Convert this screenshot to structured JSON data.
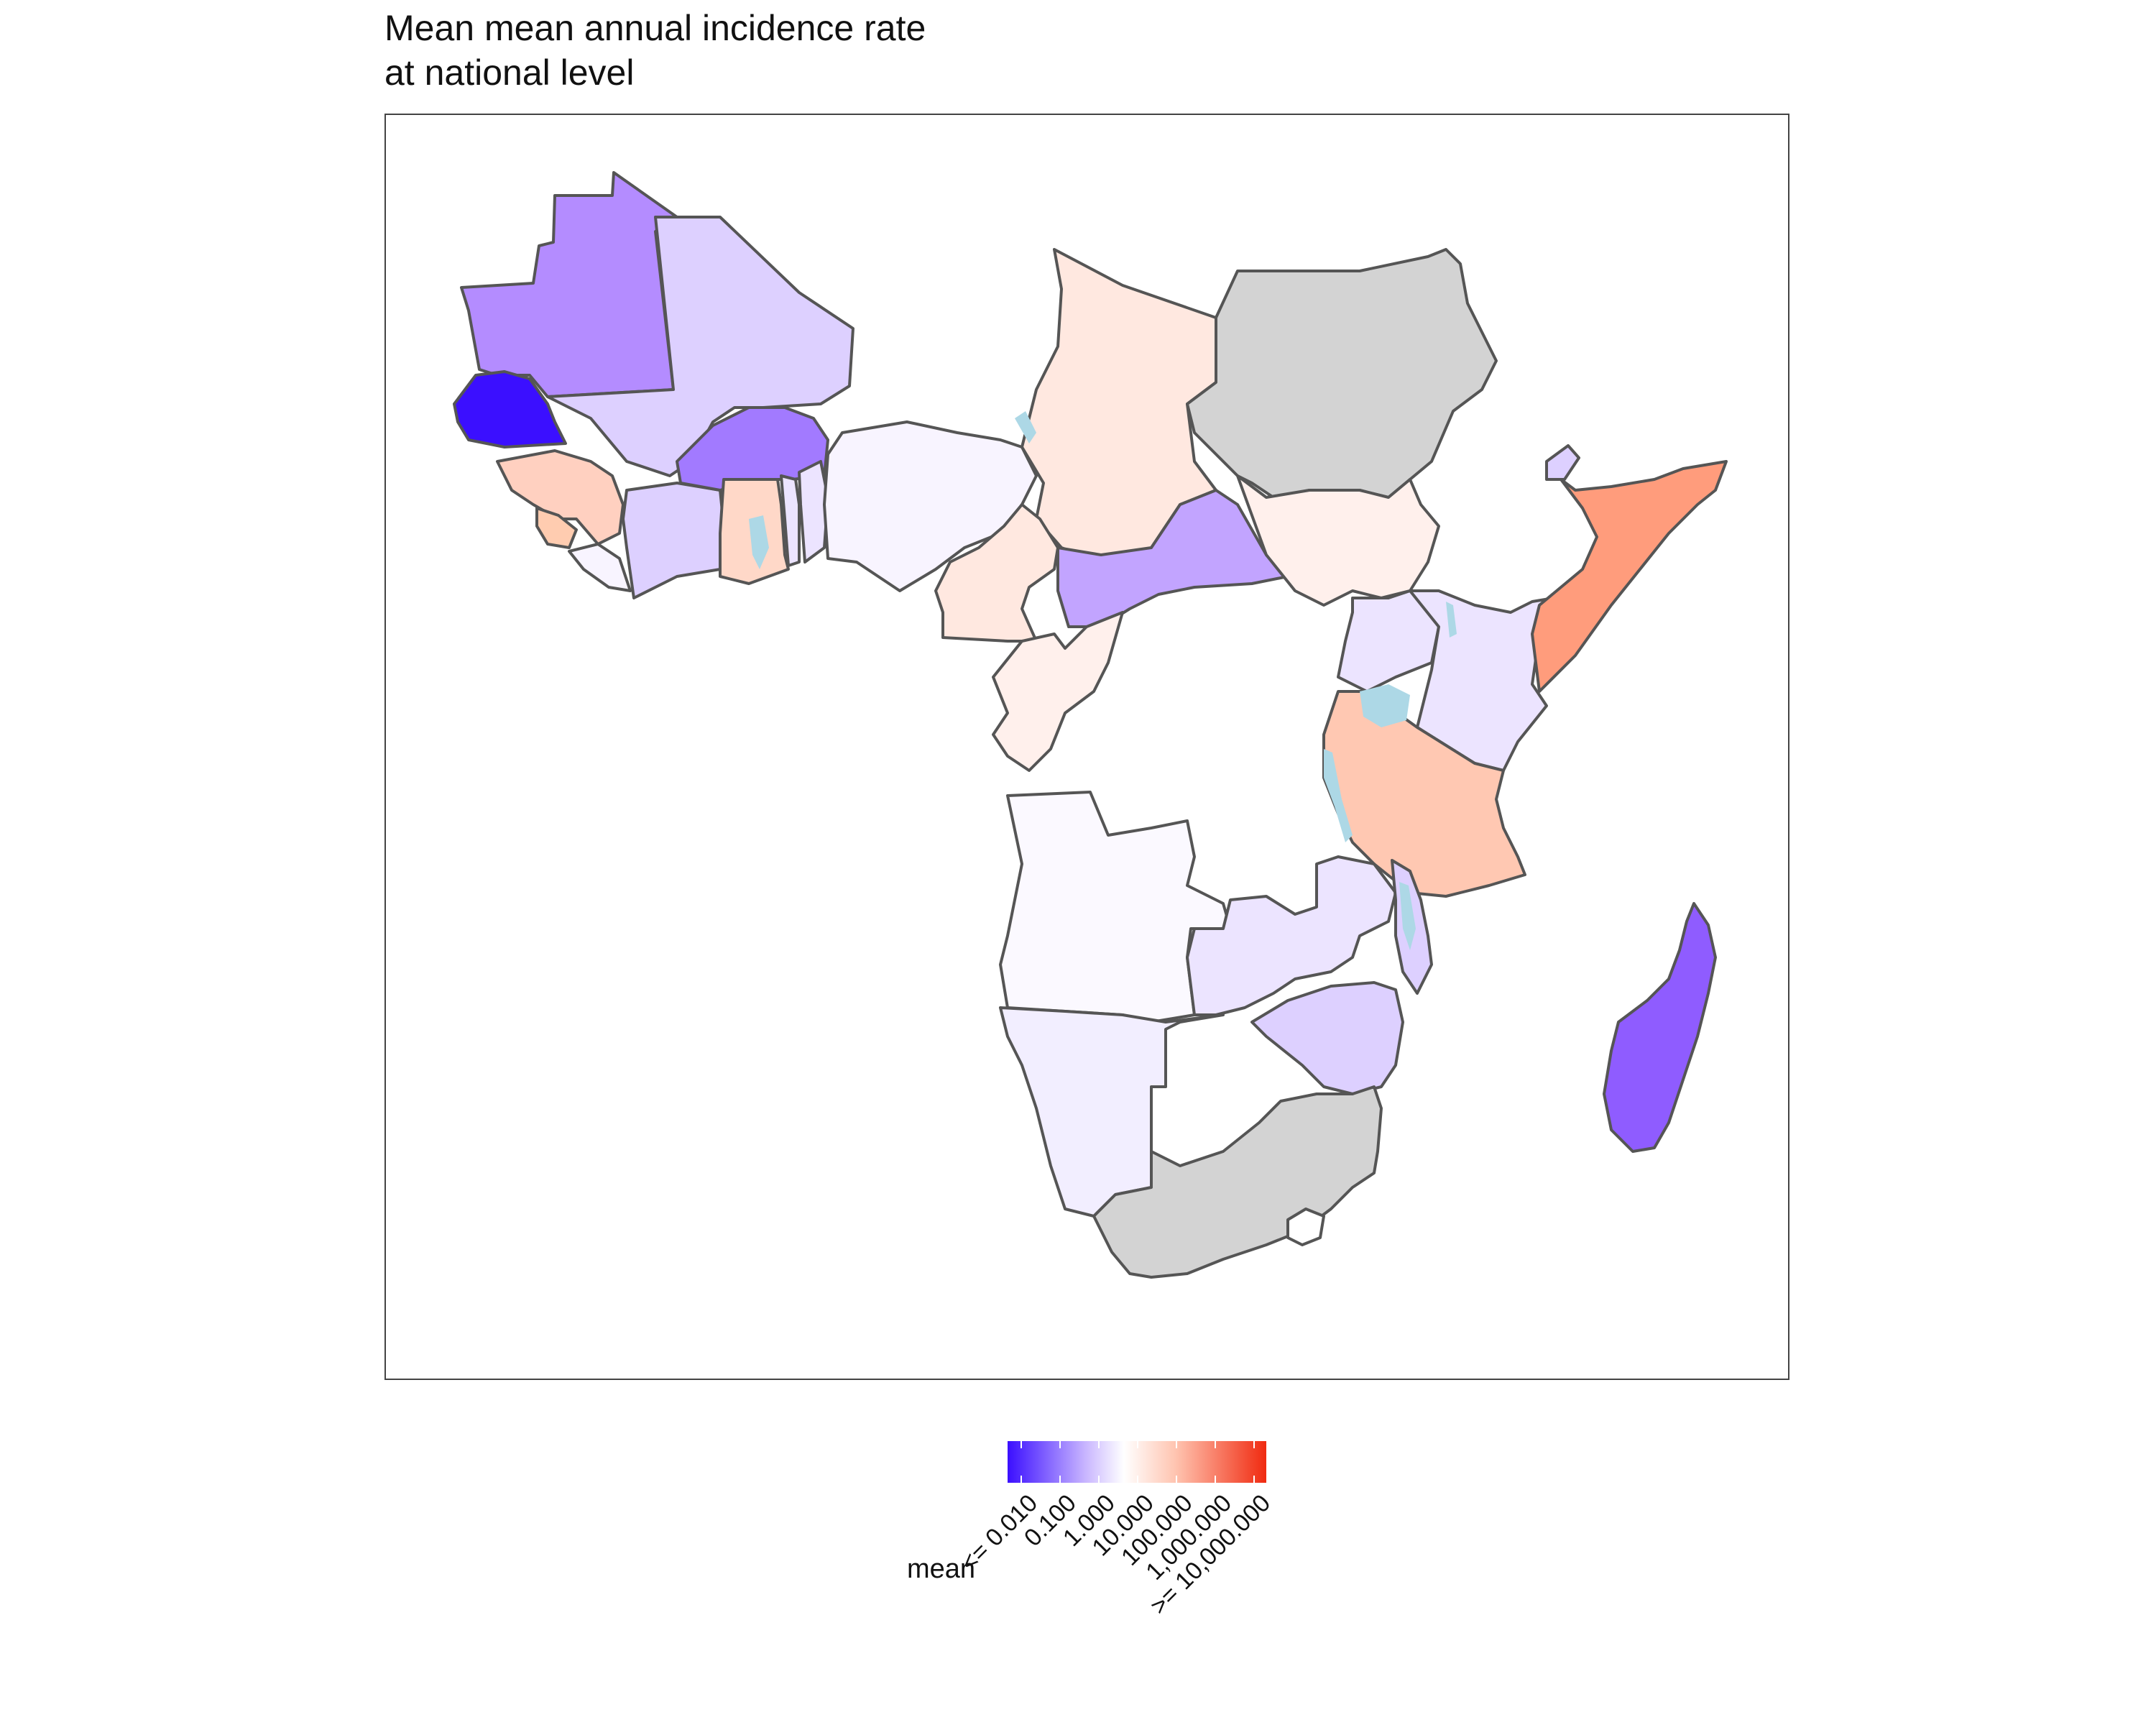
{
  "title_line1": "Mean mean annual incidence rate",
  "title_line2": "at national level",
  "legend": {
    "title": "mean",
    "labels": [
      "<= 0.010",
      "0.100",
      "1.000",
      "10.000",
      "100.000",
      "1,000.000",
      ">= 10,000.000"
    ],
    "low_color": "#3b0fff",
    "mid_color": "#ffffff",
    "high_color": "#f02a10"
  },
  "colors": {
    "na_fill": "#d3d3d3",
    "water": "#add8e6",
    "border": "#555555"
  }
}
